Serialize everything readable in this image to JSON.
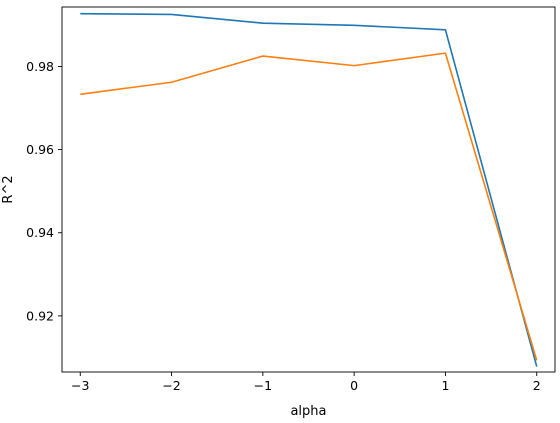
{
  "chart_data": {
    "type": "line",
    "xlabel": "alpha",
    "ylabel": "R^2",
    "xlim": [
      -3.2,
      2.2
    ],
    "ylim": [
      0.9065,
      0.9943
    ],
    "x": [
      -3,
      -2,
      -1,
      0,
      1,
      2
    ],
    "x_ticks": [
      -3,
      -2,
      -1,
      0,
      1,
      2
    ],
    "x_tick_labels": [
      "−3",
      "−2",
      "−1",
      "0",
      "1",
      "2"
    ],
    "y_ticks": [
      0.92,
      0.94,
      0.96,
      0.98
    ],
    "y_tick_labels": [
      "0.92",
      "0.94",
      "0.96",
      "0.98"
    ],
    "grid": false,
    "legend": "none",
    "series": [
      {
        "color": "#1f77b4",
        "values": [
          0.9927,
          0.9925,
          0.9904,
          0.9899,
          0.9888,
          0.9078
        ]
      },
      {
        "color": "#ff7f0e",
        "values": [
          0.9733,
          0.9762,
          0.9825,
          0.9802,
          0.9832,
          0.9093
        ]
      }
    ]
  }
}
